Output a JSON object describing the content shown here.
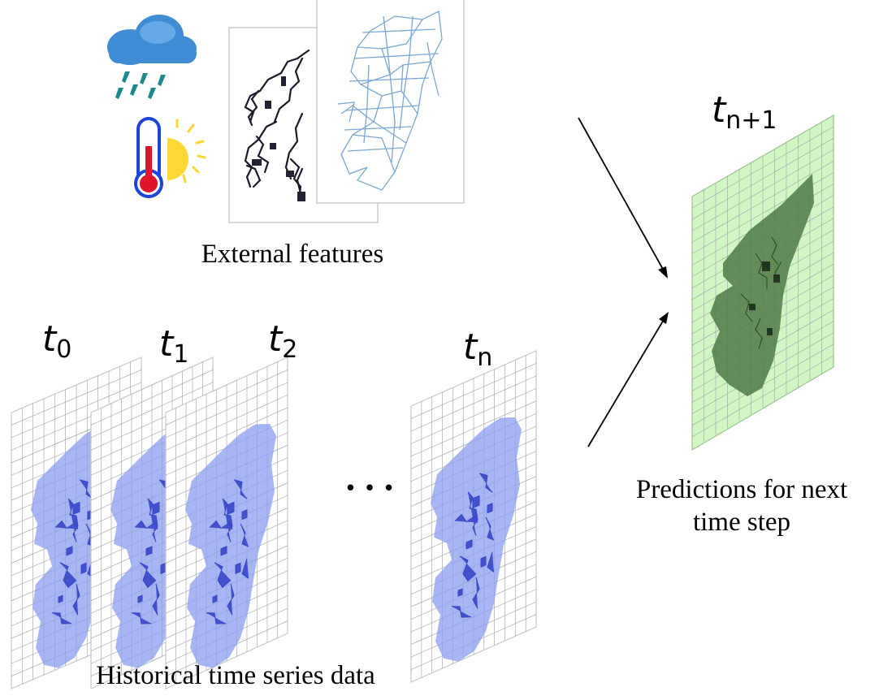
{
  "labels": {
    "external_features": "External features",
    "historical": "Historical time series data",
    "predictions_line1": "Predictions for next",
    "predictions_line2": "time step",
    "ellipsis": "• • •"
  },
  "time_labels": [
    {
      "base": "t",
      "sub": "0"
    },
    {
      "base": "t",
      "sub": "1"
    },
    {
      "base": "t",
      "sub": "2"
    },
    {
      "base": "t",
      "sub": "n"
    }
  ],
  "prediction_label": {
    "base": "t",
    "sub": "n+1"
  },
  "icons": [
    "rain-cloud-icon",
    "thermometer-sun-icon"
  ],
  "colors": {
    "history_region": "#8a9cef",
    "history_detail": "#3846c8",
    "prediction_panel": "#d2f5c4",
    "prediction_region": "#4f7a45",
    "grid": "#9aa0a8",
    "road_lines": "#7aa8d2",
    "sun": "#fdd835",
    "cloud": "#3f8bd4",
    "rain": "#1c8a8a",
    "thermo_red": "#e0142a",
    "thermo_blue": "#1e45d8"
  }
}
